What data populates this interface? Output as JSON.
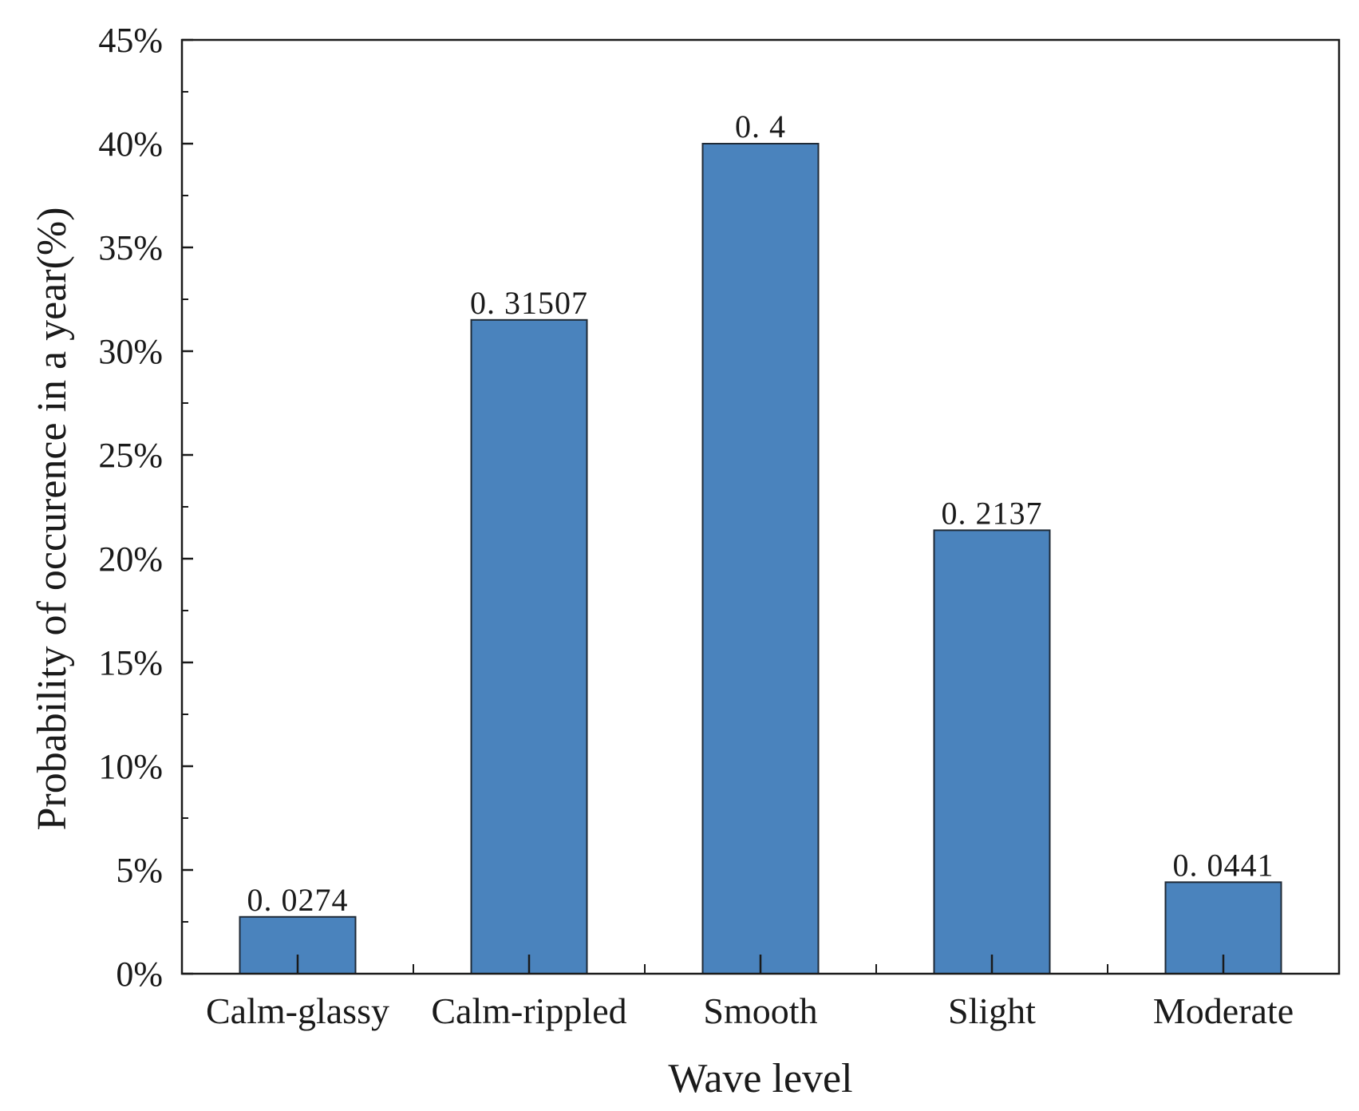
{
  "chart_data": {
    "type": "bar",
    "title": "",
    "xlabel": "Wave level",
    "ylabel": "Probability of occurence in a year(%)",
    "categories": [
      "Calm-glassy",
      "Calm-rippled",
      "Smooth",
      "Slight",
      "Moderate"
    ],
    "values": [
      0.0274,
      0.31507,
      0.4,
      0.2137,
      0.0441
    ],
    "data_labels": [
      "0. 0274",
      "0. 31507",
      "0. 4",
      "0. 2137",
      "0. 0441"
    ],
    "ylim": [
      0,
      0.45
    ],
    "yticks": [
      0,
      0.05,
      0.1,
      0.15,
      0.2,
      0.25,
      0.3,
      0.35,
      0.4,
      0.45
    ],
    "ytick_labels": [
      "0%",
      "5%",
      "10%",
      "15%",
      "20%",
      "25%",
      "30%",
      "35%",
      "40%",
      "45%"
    ],
    "grid": false,
    "bar_color": "#4a83bd",
    "bar_edge_color": "#1f2a36",
    "axis_color": "#1a1a1a"
  }
}
